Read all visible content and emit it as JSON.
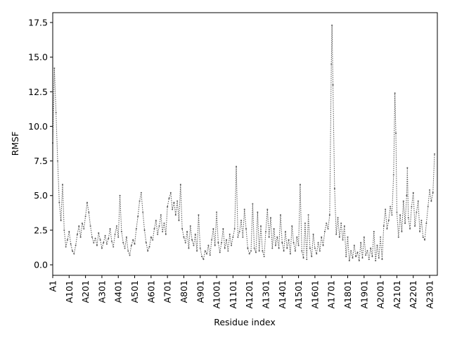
{
  "chart_data": {
    "type": "line",
    "xlabel": "Residue index",
    "ylabel": "RMSF",
    "color": "#555555",
    "x": [
      1,
      11,
      21,
      31,
      41,
      51,
      61,
      71,
      81,
      91,
      101,
      111,
      121,
      131,
      141,
      151,
      161,
      171,
      181,
      191,
      201,
      211,
      221,
      231,
      241,
      251,
      261,
      271,
      281,
      291,
      301,
      311,
      321,
      331,
      341,
      351,
      361,
      371,
      381,
      391,
      401,
      411,
      421,
      431,
      441,
      451,
      461,
      471,
      481,
      491,
      501,
      511,
      521,
      531,
      541,
      551,
      561,
      571,
      581,
      591,
      601,
      611,
      621,
      631,
      641,
      651,
      661,
      671,
      681,
      691,
      701,
      711,
      721,
      731,
      741,
      751,
      761,
      771,
      781,
      791,
      801,
      811,
      821,
      831,
      841,
      851,
      861,
      871,
      881,
      891,
      901,
      911,
      921,
      931,
      941,
      951,
      961,
      971,
      981,
      991,
      1001,
      1011,
      1021,
      1031,
      1041,
      1051,
      1061,
      1071,
      1081,
      1091,
      1101,
      1111,
      1121,
      1131,
      1141,
      1151,
      1161,
      1171,
      1181,
      1191,
      1201,
      1211,
      1221,
      1231,
      1241,
      1251,
      1261,
      1271,
      1281,
      1291,
      1301,
      1311,
      1321,
      1331,
      1341,
      1351,
      1361,
      1371,
      1381,
      1391,
      1401,
      1411,
      1421,
      1431,
      1441,
      1451,
      1461,
      1471,
      1481,
      1491,
      1501,
      1511,
      1521,
      1531,
      1541,
      1551,
      1561,
      1571,
      1581,
      1591,
      1601,
      1611,
      1621,
      1631,
      1641,
      1651,
      1661,
      1671,
      1681,
      1691,
      1701,
      1705,
      1711,
      1721,
      1731,
      1741,
      1751,
      1761,
      1771,
      1781,
      1791,
      1801,
      1811,
      1821,
      1831,
      1841,
      1851,
      1861,
      1871,
      1881,
      1891,
      1901,
      1911,
      1921,
      1931,
      1941,
      1951,
      1961,
      1971,
      1981,
      1991,
      2001,
      2011,
      2021,
      2031,
      2041,
      2051,
      2061,
      2071,
      2081,
      2089,
      2095,
      2101,
      2111,
      2121,
      2131,
      2141,
      2151,
      2161,
      2165,
      2171,
      2181,
      2191,
      2201,
      2211,
      2221,
      2231,
      2241,
      2251,
      2261,
      2271,
      2281,
      2291,
      2301,
      2311,
      2321,
      2331
    ],
    "values": [
      8.8,
      14.2,
      11,
      7.5,
      4.5,
      3.2,
      5.8,
      2.5,
      1.3,
      1.8,
      2.4,
      1.5,
      1.0,
      0.8,
      1.4,
      2.2,
      2.8,
      2.0,
      3.0,
      2.6,
      3.5,
      4.5,
      3.8,
      2.8,
      2.0,
      1.6,
      1.9,
      1.4,
      2.3,
      1.8,
      1.2,
      1.6,
      2.1,
      1.5,
      1.9,
      2.6,
      1.7,
      1.3,
      2.2,
      2.8,
      2.0,
      5.0,
      2.4,
      1.6,
      1.2,
      2.0,
      1.0,
      0.7,
      1.4,
      1.8,
      1.5,
      2.6,
      3.5,
      4.6,
      5.2,
      3.8,
      2.5,
      1.6,
      1.0,
      1.3,
      2.0,
      1.8,
      2.6,
      3.2,
      2.2,
      2.8,
      3.6,
      2.4,
      3.0,
      2.2,
      4.2,
      4.8,
      5.2,
      4.0,
      4.5,
      3.6,
      4.6,
      3.2,
      5.8,
      2.6,
      2.0,
      1.6,
      2.4,
      1.2,
      2.8,
      1.8,
      1.4,
      2.2,
      1.0,
      3.6,
      1.2,
      0.6,
      0.4,
      1.0,
      0.8,
      1.4,
      0.7,
      1.8,
      2.6,
      1.4,
      3.8,
      1.6,
      0.9,
      1.6,
      2.6,
      1.2,
      1.8,
      1.0,
      2.2,
      1.4,
      2.0,
      2.6,
      7.1,
      2.0,
      2.4,
      3.2,
      2.0,
      4.0,
      2.6,
      1.2,
      0.8,
      1.0,
      4.4,
      1.2,
      0.9,
      3.8,
      1.0,
      2.8,
      1.0,
      0.6,
      2.4,
      4.0,
      2.0,
      3.4,
      1.2,
      2.6,
      1.4,
      2.0,
      1.2,
      3.6,
      1.6,
      1.0,
      2.4,
      1.2,
      1.8,
      0.8,
      2.8,
      1.6,
      1.0,
      2.0,
      1.4,
      5.8,
      1.0,
      0.5,
      3.0,
      0.4,
      3.6,
      1.2,
      0.6,
      2.2,
      1.2,
      0.8,
      1.6,
      1.0,
      2.0,
      1.4,
      2.4,
      3.0,
      2.6,
      3.6,
      14.5,
      17.3,
      13.0,
      5.5,
      2.2,
      3.4,
      2.0,
      3.0,
      1.8,
      2.8,
      0.6,
      2.0,
      0.3,
      1.0,
      0.5,
      1.4,
      0.6,
      0.9,
      0.3,
      1.6,
      0.5,
      2.0,
      0.7,
      1.0,
      0.4,
      1.2,
      0.6,
      2.4,
      0.3,
      1.4,
      0.5,
      2.0,
      0.4,
      2.8,
      4.0,
      2.6,
      3.2,
      4.2,
      3.6,
      6.5,
      12.4,
      9.5,
      3.8,
      2.0,
      3.6,
      2.4,
      4.6,
      3.0,
      5.0,
      7.0,
      3.4,
      2.6,
      4.2,
      5.2,
      2.8,
      3.8,
      4.6,
      2.4,
      3.2,
      2.0,
      1.8,
      3.0,
      4.2,
      5.4,
      4.6,
      5.2,
      8.0
    ],
    "xlim": [
      1,
      2348
    ],
    "ylim": [
      -0.76,
      18.21
    ],
    "xticks": [
      {
        "value": 1,
        "label": "A1"
      },
      {
        "value": 101,
        "label": "A101"
      },
      {
        "value": 201,
        "label": "A201"
      },
      {
        "value": 301,
        "label": "A301"
      },
      {
        "value": 401,
        "label": "A401"
      },
      {
        "value": 501,
        "label": "A501"
      },
      {
        "value": 601,
        "label": "A601"
      },
      {
        "value": 701,
        "label": "A701"
      },
      {
        "value": 801,
        "label": "A801"
      },
      {
        "value": 901,
        "label": "A901"
      },
      {
        "value": 1001,
        "label": "A1001"
      },
      {
        "value": 1101,
        "label": "A1101"
      },
      {
        "value": 1201,
        "label": "A1201"
      },
      {
        "value": 1301,
        "label": "A1301"
      },
      {
        "value": 1401,
        "label": "A1401"
      },
      {
        "value": 1501,
        "label": "A1501"
      },
      {
        "value": 1601,
        "label": "A1601"
      },
      {
        "value": 1701,
        "label": "A1701"
      },
      {
        "value": 1801,
        "label": "A1801"
      },
      {
        "value": 1901,
        "label": "A1901"
      },
      {
        "value": 2001,
        "label": "A2001"
      },
      {
        "value": 2101,
        "label": "A2101"
      },
      {
        "value": 2201,
        "label": "A2201"
      },
      {
        "value": 2301,
        "label": "A2301"
      }
    ],
    "yticks": [
      {
        "value": 0,
        "label": "0.0"
      },
      2.5,
      {
        "value": 5,
        "label": "5.0"
      },
      7.5,
      {
        "value": 10,
        "label": "10.0"
      },
      12.5,
      {
        "value": 15,
        "label": "15.0"
      },
      17.5
    ]
  }
}
